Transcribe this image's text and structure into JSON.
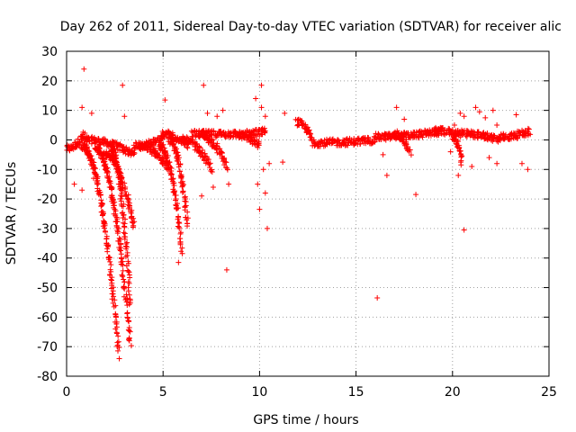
{
  "chart_data": {
    "type": "scatter",
    "title": "Day 262 of 2011, Sidereal Day-to-day VTEC variation (SDTVAR) for receiver alic",
    "xlabel": "GPS time / hours",
    "ylabel": "SDTVAR / TECUs",
    "xlim": [
      0,
      25
    ],
    "ylim": [
      -80,
      30
    ],
    "xticks": [
      0,
      5,
      10,
      15,
      20,
      25
    ],
    "yticks": [
      -80,
      -70,
      -60,
      -50,
      -40,
      -30,
      -20,
      -10,
      0,
      10,
      20,
      30
    ],
    "xtick_labels": [
      "0",
      "5",
      "10",
      "15",
      "20",
      "25"
    ],
    "ytick_labels": [
      "-80",
      "-70",
      "-60",
      "-50",
      "-40",
      "-30",
      "-20",
      "-10",
      "0",
      "10",
      "20",
      "30"
    ],
    "grid": true,
    "marker": "+",
    "color": "#ff0000",
    "series": [
      {
        "name": "SDTVAR",
        "segments": [
          {
            "x0": 0.0,
            "x1": 0.9,
            "y0": -3,
            "y1": 2
          },
          {
            "x0": 0.9,
            "x1": 3.5,
            "y0": 0,
            "y1": -5
          },
          {
            "x0": 0.8,
            "x1": 2.7,
            "y0": -2,
            "y1": -73
          },
          {
            "x0": 1.5,
            "x1": 3.3,
            "y0": -3,
            "y1": -70
          },
          {
            "x0": 2.0,
            "x1": 3.5,
            "y0": -5,
            "y1": -30
          },
          {
            "x0": 2.3,
            "x1": 3.3,
            "y0": -3,
            "y1": -56
          },
          {
            "x0": 3.5,
            "x1": 5.0,
            "y0": -2,
            "y1": 1
          },
          {
            "x0": 3.8,
            "x1": 5.3,
            "y0": -2,
            "y1": -10
          },
          {
            "x0": 4.8,
            "x1": 6.0,
            "y0": -2,
            "y1": -38
          },
          {
            "x0": 5.3,
            "x1": 6.3,
            "y0": 0,
            "y1": -30
          },
          {
            "x0": 5.0,
            "x1": 6.3,
            "y0": 2,
            "y1": -2
          },
          {
            "x0": 6.0,
            "x1": 7.5,
            "y0": 0,
            "y1": -10
          },
          {
            "x0": 7.0,
            "x1": 8.3,
            "y0": 1,
            "y1": -9
          },
          {
            "x0": 6.5,
            "x1": 8.5,
            "y0": 2,
            "y1": 2
          },
          {
            "x0": 8.5,
            "x1": 10.0,
            "y0": 2,
            "y1": -2
          },
          {
            "x0": 9.0,
            "x1": 10.3,
            "y0": 2,
            "y1": 3
          },
          {
            "x0": 11.9,
            "x1": 12.8,
            "y0": 6,
            "y1": -1
          },
          {
            "x0": 12.8,
            "x1": 16.0,
            "y0": -1,
            "y1": 0
          },
          {
            "x0": 16.0,
            "x1": 19.5,
            "y0": 1,
            "y1": 3
          },
          {
            "x0": 17.0,
            "x1": 17.8,
            "y0": 2,
            "y1": -4
          },
          {
            "x0": 19.0,
            "x1": 20.5,
            "y0": 3,
            "y1": 2
          },
          {
            "x0": 20.0,
            "x1": 20.5,
            "y0": 1,
            "y1": -8
          },
          {
            "x0": 20.5,
            "x1": 22.5,
            "y0": 2,
            "y1": 0
          },
          {
            "x0": 22.5,
            "x1": 24.0,
            "y0": 1,
            "y1": 3
          }
        ],
        "outliers": [
          [
            0.9,
            24
          ],
          [
            2.9,
            18.5
          ],
          [
            5.1,
            13.5
          ],
          [
            7.1,
            18.5
          ],
          [
            10.1,
            18.5
          ],
          [
            9.8,
            14
          ],
          [
            10.1,
            11
          ],
          [
            0.8,
            11
          ],
          [
            1.3,
            9
          ],
          [
            3.0,
            8
          ],
          [
            7.3,
            9
          ],
          [
            7.8,
            8
          ],
          [
            8.1,
            10
          ],
          [
            10.3,
            8
          ],
          [
            11.3,
            9
          ],
          [
            10.4,
            -30
          ],
          [
            8.3,
            -44
          ],
          [
            5.8,
            -41.5
          ],
          [
            10.0,
            -23.5
          ],
          [
            10.3,
            -18
          ],
          [
            9.9,
            -15
          ],
          [
            10.2,
            -10
          ],
          [
            10.5,
            -8
          ],
          [
            11.2,
            -7.5
          ],
          [
            7.0,
            -19
          ],
          [
            7.6,
            -16
          ],
          [
            8.4,
            -15
          ],
          [
            3.2,
            -22
          ],
          [
            2.0,
            -10
          ],
          [
            2.7,
            -15
          ],
          [
            0.4,
            -15
          ],
          [
            0.8,
            -17
          ],
          [
            1.4,
            -13
          ],
          [
            16.1,
            -53.5
          ],
          [
            20.6,
            -30.5
          ],
          [
            18.1,
            -18.5
          ],
          [
            16.6,
            -12
          ],
          [
            16.4,
            -5
          ],
          [
            17.1,
            11
          ],
          [
            17.5,
            7
          ],
          [
            20.1,
            5
          ],
          [
            20.4,
            9
          ],
          [
            20.6,
            8
          ],
          [
            21.2,
            11
          ],
          [
            21.4,
            9.5
          ],
          [
            21.0,
            -9
          ],
          [
            20.3,
            -12
          ],
          [
            21.7,
            7.5
          ],
          [
            22.1,
            10
          ],
          [
            22.3,
            5
          ],
          [
            22.3,
            -8
          ],
          [
            23.3,
            8.5
          ],
          [
            23.6,
            -8
          ],
          [
            23.9,
            -10
          ],
          [
            19.9,
            -4
          ],
          [
            21.9,
            -6
          ]
        ]
      }
    ]
  }
}
